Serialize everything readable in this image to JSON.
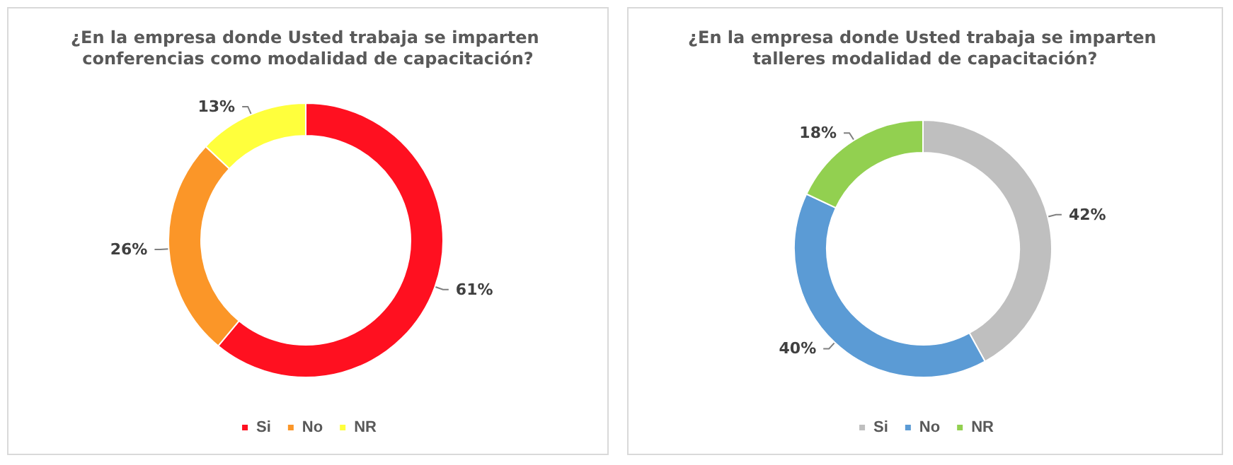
{
  "chart_data": [
    {
      "type": "donut",
      "title": "¿En la empresa donde Usted trabaja se imparten conferencias como modalidad de capacitación?",
      "categories": [
        "Si",
        "No",
        "NR"
      ],
      "values": [
        61,
        26,
        13
      ],
      "colors": [
        "#ff1020",
        "#fb9628",
        "#ffff3c"
      ],
      "value_labels": [
        "61%",
        "26%",
        "13%"
      ],
      "legend": "bottom"
    },
    {
      "type": "donut",
      "title": "¿En la empresa donde Usted trabaja se imparten talleres modalidad de capacitación?",
      "categories": [
        "Si",
        "No",
        "NR"
      ],
      "values": [
        42,
        40,
        18
      ],
      "colors": [
        "#bfbfbf",
        "#5b9bd5",
        "#92d050"
      ],
      "value_labels": [
        "42%",
        "40%",
        "18%"
      ],
      "legend": "bottom"
    }
  ]
}
